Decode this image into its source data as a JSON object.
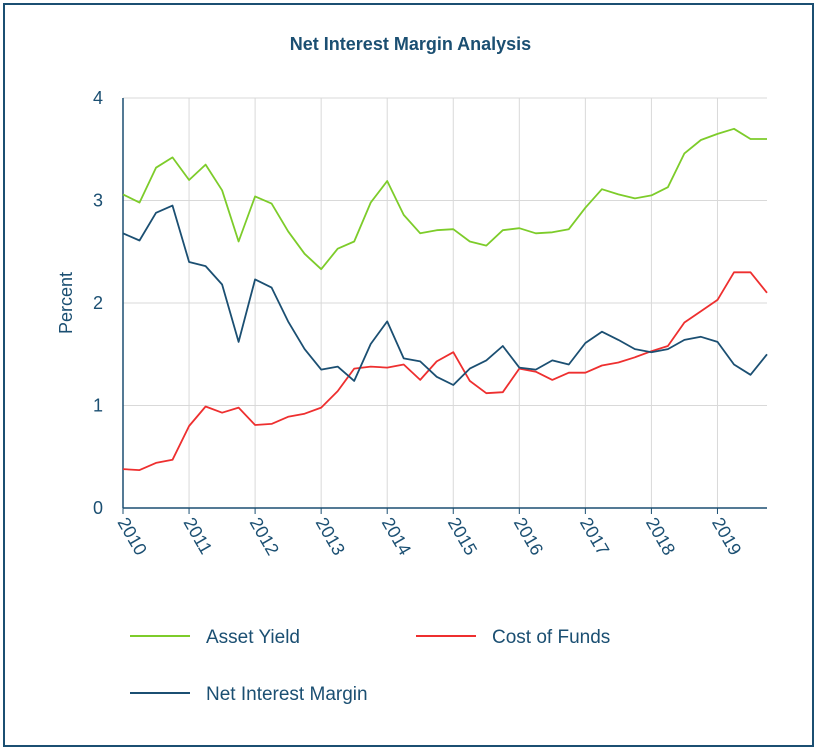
{
  "chart_data": {
    "type": "line",
    "title": "Net Interest Margin Analysis",
    "xlabel": "",
    "ylabel": "Percent",
    "ylim": [
      0,
      4
    ],
    "yticks": [
      "0",
      "1",
      "2",
      "3",
      "4"
    ],
    "xticks": [
      "2010",
      "2011",
      "2012",
      "2013",
      "2014",
      "2015",
      "2016",
      "2017",
      "2018",
      "2019"
    ],
    "xlim": [
      2010.0,
      2019.75
    ],
    "grid": true,
    "legend": "bottom",
    "x": [
      2010.0,
      2010.25,
      2010.5,
      2010.75,
      2011.0,
      2011.25,
      2011.5,
      2011.75,
      2012.0,
      2012.25,
      2012.5,
      2012.75,
      2013.0,
      2013.25,
      2013.5,
      2013.75,
      2014.0,
      2014.25,
      2014.5,
      2014.75,
      2015.0,
      2015.25,
      2015.5,
      2015.75,
      2016.0,
      2016.25,
      2016.5,
      2016.75,
      2017.0,
      2017.25,
      2017.5,
      2017.75,
      2018.0,
      2018.25,
      2018.5,
      2018.75,
      2019.0,
      2019.25,
      2019.5,
      2019.75
    ],
    "series": [
      {
        "name": "Asset Yield",
        "color": "#7dcc2a",
        "values": [
          3.06,
          2.98,
          3.32,
          3.42,
          3.2,
          3.35,
          3.1,
          2.6,
          3.04,
          2.97,
          2.7,
          2.48,
          2.33,
          2.53,
          2.6,
          2.98,
          3.19,
          2.86,
          2.68,
          2.71,
          2.72,
          2.6,
          2.56,
          2.71,
          2.73,
          2.68,
          2.69,
          2.72,
          2.93,
          3.11,
          3.06,
          3.02,
          3.05,
          3.13,
          3.46,
          3.59,
          3.65,
          3.7,
          3.6,
          3.6
        ]
      },
      {
        "name": "Cost of Funds",
        "color": "#ee2f2f",
        "values": [
          0.38,
          0.37,
          0.44,
          0.47,
          0.8,
          0.99,
          0.93,
          0.98,
          0.81,
          0.82,
          0.89,
          0.92,
          0.98,
          1.14,
          1.36,
          1.38,
          1.37,
          1.4,
          1.25,
          1.43,
          1.52,
          1.24,
          1.12,
          1.13,
          1.36,
          1.33,
          1.25,
          1.32,
          1.32,
          1.39,
          1.42,
          1.47,
          1.53,
          1.58,
          1.81,
          1.92,
          2.03,
          2.3,
          2.3,
          2.1
        ]
      },
      {
        "name": "Net Interest Margin",
        "color": "#1b4f72",
        "values": [
          2.68,
          2.61,
          2.88,
          2.95,
          2.4,
          2.36,
          2.18,
          1.62,
          2.23,
          2.15,
          1.82,
          1.55,
          1.35,
          1.38,
          1.24,
          1.6,
          1.82,
          1.46,
          1.43,
          1.28,
          1.2,
          1.36,
          1.44,
          1.58,
          1.37,
          1.35,
          1.44,
          1.4,
          1.61,
          1.72,
          1.64,
          1.55,
          1.52,
          1.55,
          1.64,
          1.67,
          1.62,
          1.4,
          1.3,
          1.5
        ]
      }
    ]
  }
}
